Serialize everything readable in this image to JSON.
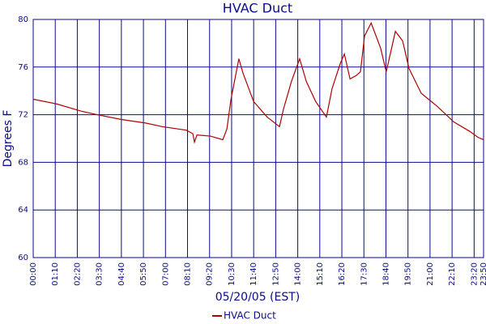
{
  "chart_data": {
    "type": "line",
    "title": "HVAC Duct",
    "x_label": "05/20/05 (EST)",
    "y_label": "Degrees F",
    "x": [
      0,
      75,
      152,
      203,
      280,
      357,
      409,
      486,
      507,
      512,
      520,
      563,
      602,
      615,
      628,
      653,
      666,
      700,
      743,
      782,
      795,
      820,
      846,
      867,
      897,
      931,
      949,
      975,
      988,
      1006,
      1026,
      1039,
      1052,
      1073,
      1103,
      1121,
      1150,
      1173,
      1193,
      1232,
      1283,
      1335,
      1386,
      1412,
      1430
    ],
    "series": [
      {
        "name": "HVAC Duct",
        "color": "#b00000",
        "values": [
          73.3,
          72.9,
          72.3,
          72.0,
          71.6,
          71.3,
          71.0,
          70.7,
          70.4,
          69.7,
          70.3,
          70.2,
          69.9,
          70.8,
          73.3,
          76.7,
          75.5,
          73.1,
          71.8,
          71.0,
          72.5,
          74.8,
          76.7,
          74.8,
          73.1,
          71.8,
          74.2,
          76.3,
          77.1,
          75.0,
          75.3,
          75.6,
          78.6,
          79.7,
          77.6,
          75.6,
          79.0,
          78.2,
          75.9,
          73.8,
          72.7,
          71.4,
          70.6,
          70.1,
          69.9
        ]
      }
    ],
    "xlim": [
      0,
      1430
    ],
    "xticks": [
      {
        "value": 0,
        "label": "00:00"
      },
      {
        "value": 70,
        "label": "01:10"
      },
      {
        "value": 140,
        "label": "02:20"
      },
      {
        "value": 210,
        "label": "03:30"
      },
      {
        "value": 280,
        "label": "04:40"
      },
      {
        "value": 350,
        "label": "05:50"
      },
      {
        "value": 420,
        "label": "07:00"
      },
      {
        "value": 490,
        "label": "08:10"
      },
      {
        "value": 560,
        "label": "09:20"
      },
      {
        "value": 630,
        "label": "10:30"
      },
      {
        "value": 700,
        "label": "11:40"
      },
      {
        "value": 770,
        "label": "12:50"
      },
      {
        "value": 840,
        "label": "14:00"
      },
      {
        "value": 910,
        "label": "15:10"
      },
      {
        "value": 980,
        "label": "16:20"
      },
      {
        "value": 1050,
        "label": "17:30"
      },
      {
        "value": 1120,
        "label": "18:40"
      },
      {
        "value": 1190,
        "label": "19:50"
      },
      {
        "value": 1260,
        "label": "21:00"
      },
      {
        "value": 1330,
        "label": "22:10"
      },
      {
        "value": 1400,
        "label": "23:20"
      },
      {
        "value": 1430,
        "label": "23:50"
      }
    ],
    "ylim": [
      60,
      80
    ],
    "yticks": [
      60,
      64,
      68,
      72,
      76,
      80
    ],
    "grid": true
  }
}
